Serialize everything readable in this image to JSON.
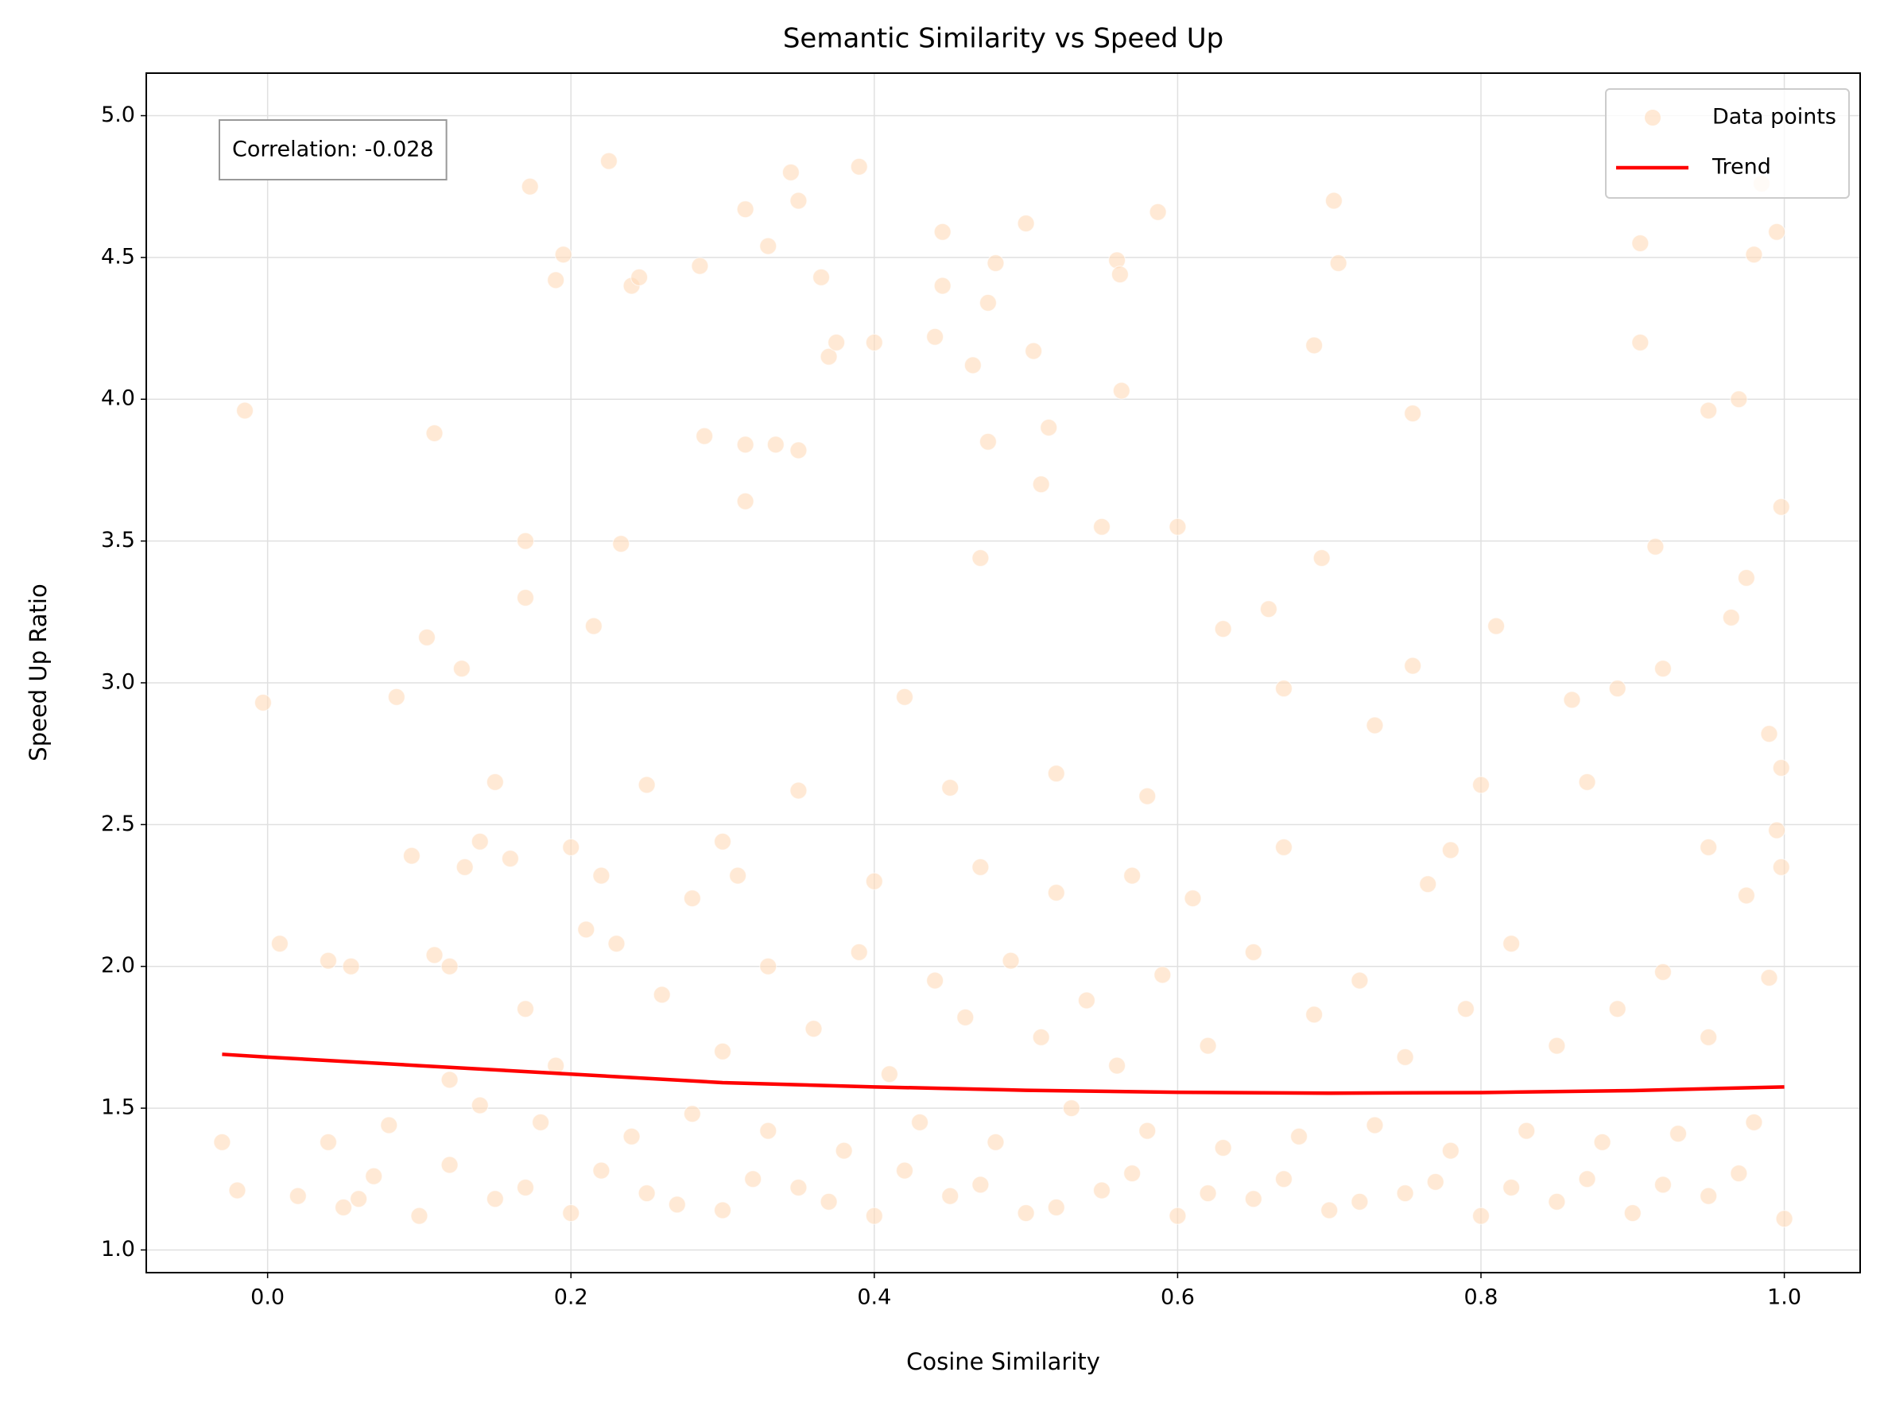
{
  "chart_data": {
    "type": "scatter",
    "title": "Semantic Similarity vs Speed Up",
    "x_label": "Cosine Similarity",
    "y_label": "Speed Up Ratio",
    "annotation": "Correlation: -0.028",
    "xlim": [
      -0.08,
      1.05
    ],
    "ylim": [
      0.92,
      5.15
    ],
    "xticks": [
      {
        "value": 0,
        "label": "0.0"
      },
      0.2,
      0.4,
      0.6,
      0.8,
      {
        "value": 1,
        "label": "1.0"
      }
    ],
    "yticks": [
      {
        "value": 1,
        "label": "1.0"
      },
      1.5,
      {
        "value": 2,
        "label": "2.0"
      },
      2.5,
      {
        "value": 3,
        "label": "3.0"
      },
      3.5,
      {
        "value": 4,
        "label": "4.0"
      },
      4.5,
      {
        "value": 5,
        "label": "5.0"
      }
    ],
    "grid": true,
    "legend": "upper right",
    "series": [
      {
        "name": "Data points",
        "style": "markers",
        "color": "#ffdab9",
        "alpha": 0.6,
        "x": [
          -0.015,
          0.11,
          -0.003,
          0.008,
          0.105,
          0.173,
          0.225,
          0.19,
          0.195,
          0.24,
          0.245,
          0.285,
          0.315,
          0.33,
          0.345,
          0.35,
          0.365,
          0.39,
          0.37,
          0.375,
          0.4,
          0.445,
          0.44,
          0.445,
          0.475,
          0.48,
          0.465,
          0.5,
          0.505,
          0.515,
          0.51,
          0.475,
          0.56,
          0.562,
          0.563,
          0.587,
          0.6,
          0.55,
          0.69,
          0.703,
          0.706,
          0.755,
          0.905,
          0.905,
          0.985,
          0.995,
          0.98,
          0.97,
          0.95,
          0.998,
          0.915,
          0.975,
          0.965,
          0.81,
          0.695,
          0.47,
          0.315,
          0.315,
          0.335,
          0.35,
          0.288,
          0.17,
          0.17,
          0.233,
          0.215,
          0.128,
          0.085,
          0.15,
          0.14,
          0.095,
          0.04,
          0.055,
          0.11,
          0.12,
          0.2,
          0.25,
          0.3,
          0.35,
          0.42,
          0.45,
          0.52,
          0.58,
          0.63,
          0.66,
          0.67,
          0.73,
          0.755,
          0.86,
          0.89,
          0.92,
          0.99,
          0.998,
          0.995,
          0.998,
          0.95,
          0.975,
          0.87,
          0.8,
          0.78,
          0.765,
          0.67,
          0.61,
          0.57,
          0.52,
          0.47,
          0.4,
          0.31,
          0.28,
          0.22,
          0.16,
          0.13,
          0.05,
          0.1,
          0.15,
          0.2,
          0.25,
          0.3,
          0.35,
          0.4,
          0.45,
          0.5,
          0.55,
          0.6,
          0.65,
          0.7,
          0.75,
          0.8,
          0.85,
          0.9,
          0.95,
          1.0,
          0.02,
          0.07,
          0.12,
          0.17,
          0.22,
          0.27,
          0.32,
          0.37,
          0.42,
          0.47,
          0.52,
          0.57,
          0.62,
          0.67,
          0.72,
          0.77,
          0.82,
          0.87,
          0.92,
          0.97,
          -0.03,
          -0.02,
          0.04,
          0.08,
          0.14,
          0.18,
          0.24,
          0.28,
          0.33,
          0.38,
          0.43,
          0.48,
          0.53,
          0.58,
          0.63,
          0.68,
          0.73,
          0.78,
          0.83,
          0.88,
          0.93,
          0.98,
          0.17,
          0.21,
          0.23,
          0.26,
          0.3,
          0.33,
          0.36,
          0.39,
          0.41,
          0.44,
          0.46,
          0.49,
          0.51,
          0.54,
          0.56,
          0.59,
          0.62,
          0.65,
          0.69,
          0.72,
          0.75,
          0.79,
          0.82,
          0.85,
          0.89,
          0.92,
          0.95,
          0.99,
          0.12,
          0.06,
          0.19
        ],
        "values": [
          3.96,
          3.88,
          2.93,
          2.08,
          3.16,
          4.75,
          4.84,
          4.42,
          4.51,
          4.4,
          4.43,
          4.47,
          4.67,
          4.54,
          4.8,
          4.7,
          4.43,
          4.82,
          4.15,
          4.2,
          4.2,
          4.59,
          4.22,
          4.4,
          4.34,
          4.48,
          4.12,
          4.62,
          4.17,
          3.9,
          3.7,
          3.85,
          4.49,
          4.44,
          4.03,
          4.66,
          3.55,
          3.55,
          4.19,
          4.7,
          4.48,
          3.95,
          4.55,
          4.2,
          4.76,
          4.59,
          4.51,
          4.0,
          3.96,
          3.62,
          3.48,
          3.37,
          3.23,
          3.2,
          3.44,
          3.44,
          3.64,
          3.84,
          3.84,
          3.82,
          3.87,
          3.5,
          3.3,
          3.49,
          3.2,
          3.05,
          2.95,
          2.65,
          2.44,
          2.39,
          2.02,
          2.0,
          2.04,
          2.0,
          2.42,
          2.64,
          2.44,
          2.62,
          2.95,
          2.63,
          2.68,
          2.6,
          3.19,
          3.26,
          2.98,
          2.85,
          3.06,
          2.94,
          2.98,
          3.05,
          2.82,
          2.7,
          2.48,
          2.35,
          2.42,
          2.25,
          2.65,
          2.64,
          2.41,
          2.29,
          2.42,
          2.24,
          2.32,
          2.26,
          2.35,
          2.3,
          2.32,
          2.24,
          2.32,
          2.38,
          2.35,
          1.15,
          1.12,
          1.18,
          1.13,
          1.2,
          1.14,
          1.22,
          1.12,
          1.19,
          1.13,
          1.21,
          1.12,
          1.18,
          1.14,
          1.2,
          1.12,
          1.17,
          1.13,
          1.19,
          1.11,
          1.19,
          1.26,
          1.3,
          1.22,
          1.28,
          1.16,
          1.25,
          1.17,
          1.28,
          1.23,
          1.15,
          1.27,
          1.2,
          1.25,
          1.17,
          1.24,
          1.22,
          1.25,
          1.23,
          1.27,
          1.38,
          1.21,
          1.38,
          1.44,
          1.51,
          1.45,
          1.4,
          1.48,
          1.42,
          1.35,
          1.45,
          1.38,
          1.5,
          1.42,
          1.36,
          1.4,
          1.44,
          1.35,
          1.42,
          1.38,
          1.41,
          1.45,
          1.85,
          2.13,
          2.08,
          1.9,
          1.7,
          2.0,
          1.78,
          2.05,
          1.62,
          1.95,
          1.82,
          2.02,
          1.75,
          1.88,
          1.65,
          1.97,
          1.72,
          2.05,
          1.83,
          1.95,
          1.68,
          1.85,
          2.08,
          1.72,
          1.85,
          1.98,
          1.75,
          1.96,
          1.6,
          1.18,
          1.65
        ]
      },
      {
        "name": "Trend",
        "style": "line",
        "color": "#ff0000",
        "x": [
          -0.03,
          0,
          0.1,
          0.2,
          0.3,
          0.4,
          0.5,
          0.6,
          0.7,
          0.8,
          0.9,
          1.0
        ],
        "values": [
          1.69,
          1.68,
          1.65,
          1.62,
          1.59,
          1.575,
          1.563,
          1.556,
          1.553,
          1.555,
          1.562,
          1.575
        ]
      }
    ]
  }
}
